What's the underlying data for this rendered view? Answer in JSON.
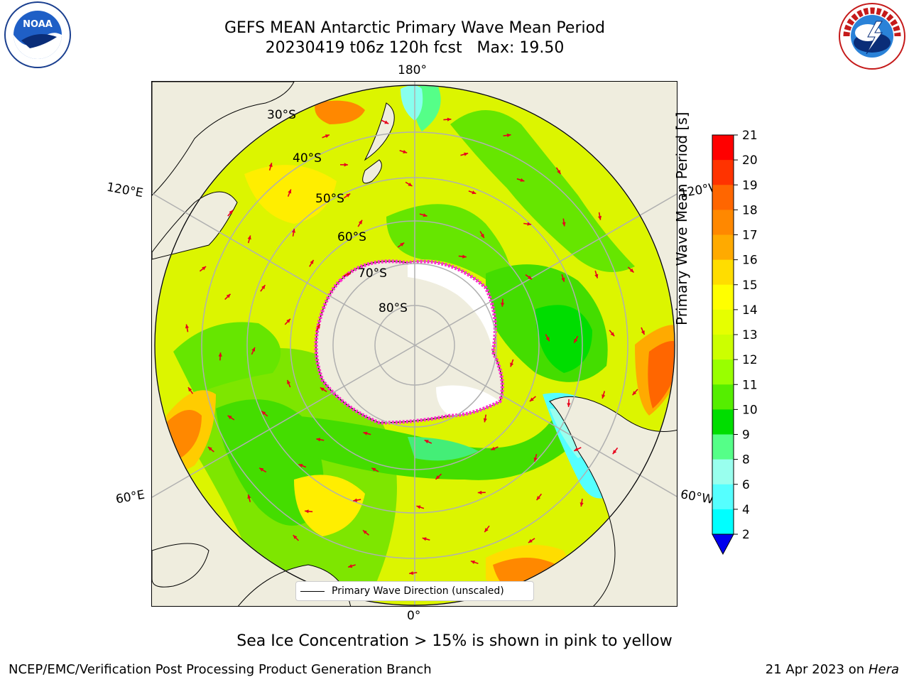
{
  "title": {
    "line1": "GEFS MEAN Antarctic Primary Wave Mean Period",
    "line2": "20230419 t06z 120h fcst   Max: 19.50"
  },
  "map": {
    "longitude_labels": [
      "180°",
      "120°E",
      "120°W",
      "60°E",
      "60°W",
      "0°"
    ],
    "latitude_labels": [
      "30°S",
      "40°S",
      "50°S",
      "60°S",
      "70°S",
      "80°S"
    ],
    "legend_label": "Primary Wave Direction (unscaled)"
  },
  "colorbar": {
    "label": "Primary Wave Mean Period [s]",
    "ticks": [
      "21",
      "20",
      "19",
      "18",
      "17",
      "16",
      "15",
      "14",
      "13",
      "12",
      "11",
      "10",
      "9",
      "8",
      "6",
      "4",
      "2"
    ],
    "colors": [
      "#ff0000",
      "#ff3300",
      "#ff6600",
      "#ff8800",
      "#ffaa00",
      "#ffdd00",
      "#ffff00",
      "#e6ff00",
      "#ccff00",
      "#99ff00",
      "#55ee00",
      "#00dd00",
      "#55ff88",
      "#99ffee",
      "#55ffff",
      "#00ffff",
      "#00c8ff",
      "#0066ff"
    ],
    "extend_color": "#0000ee"
  },
  "note": "Sea Ice Concentration > 15% is shown in pink to yellow",
  "footer": {
    "left": "NCEP/EMC/Verification Post Processing Product Generation Branch",
    "right_date": "21 Apr 2023 on ",
    "right_host": "Hera"
  },
  "logos": {
    "noaa_text": "NOAA",
    "nws_text": "NATIONAL WEATHER SERVICE"
  }
}
